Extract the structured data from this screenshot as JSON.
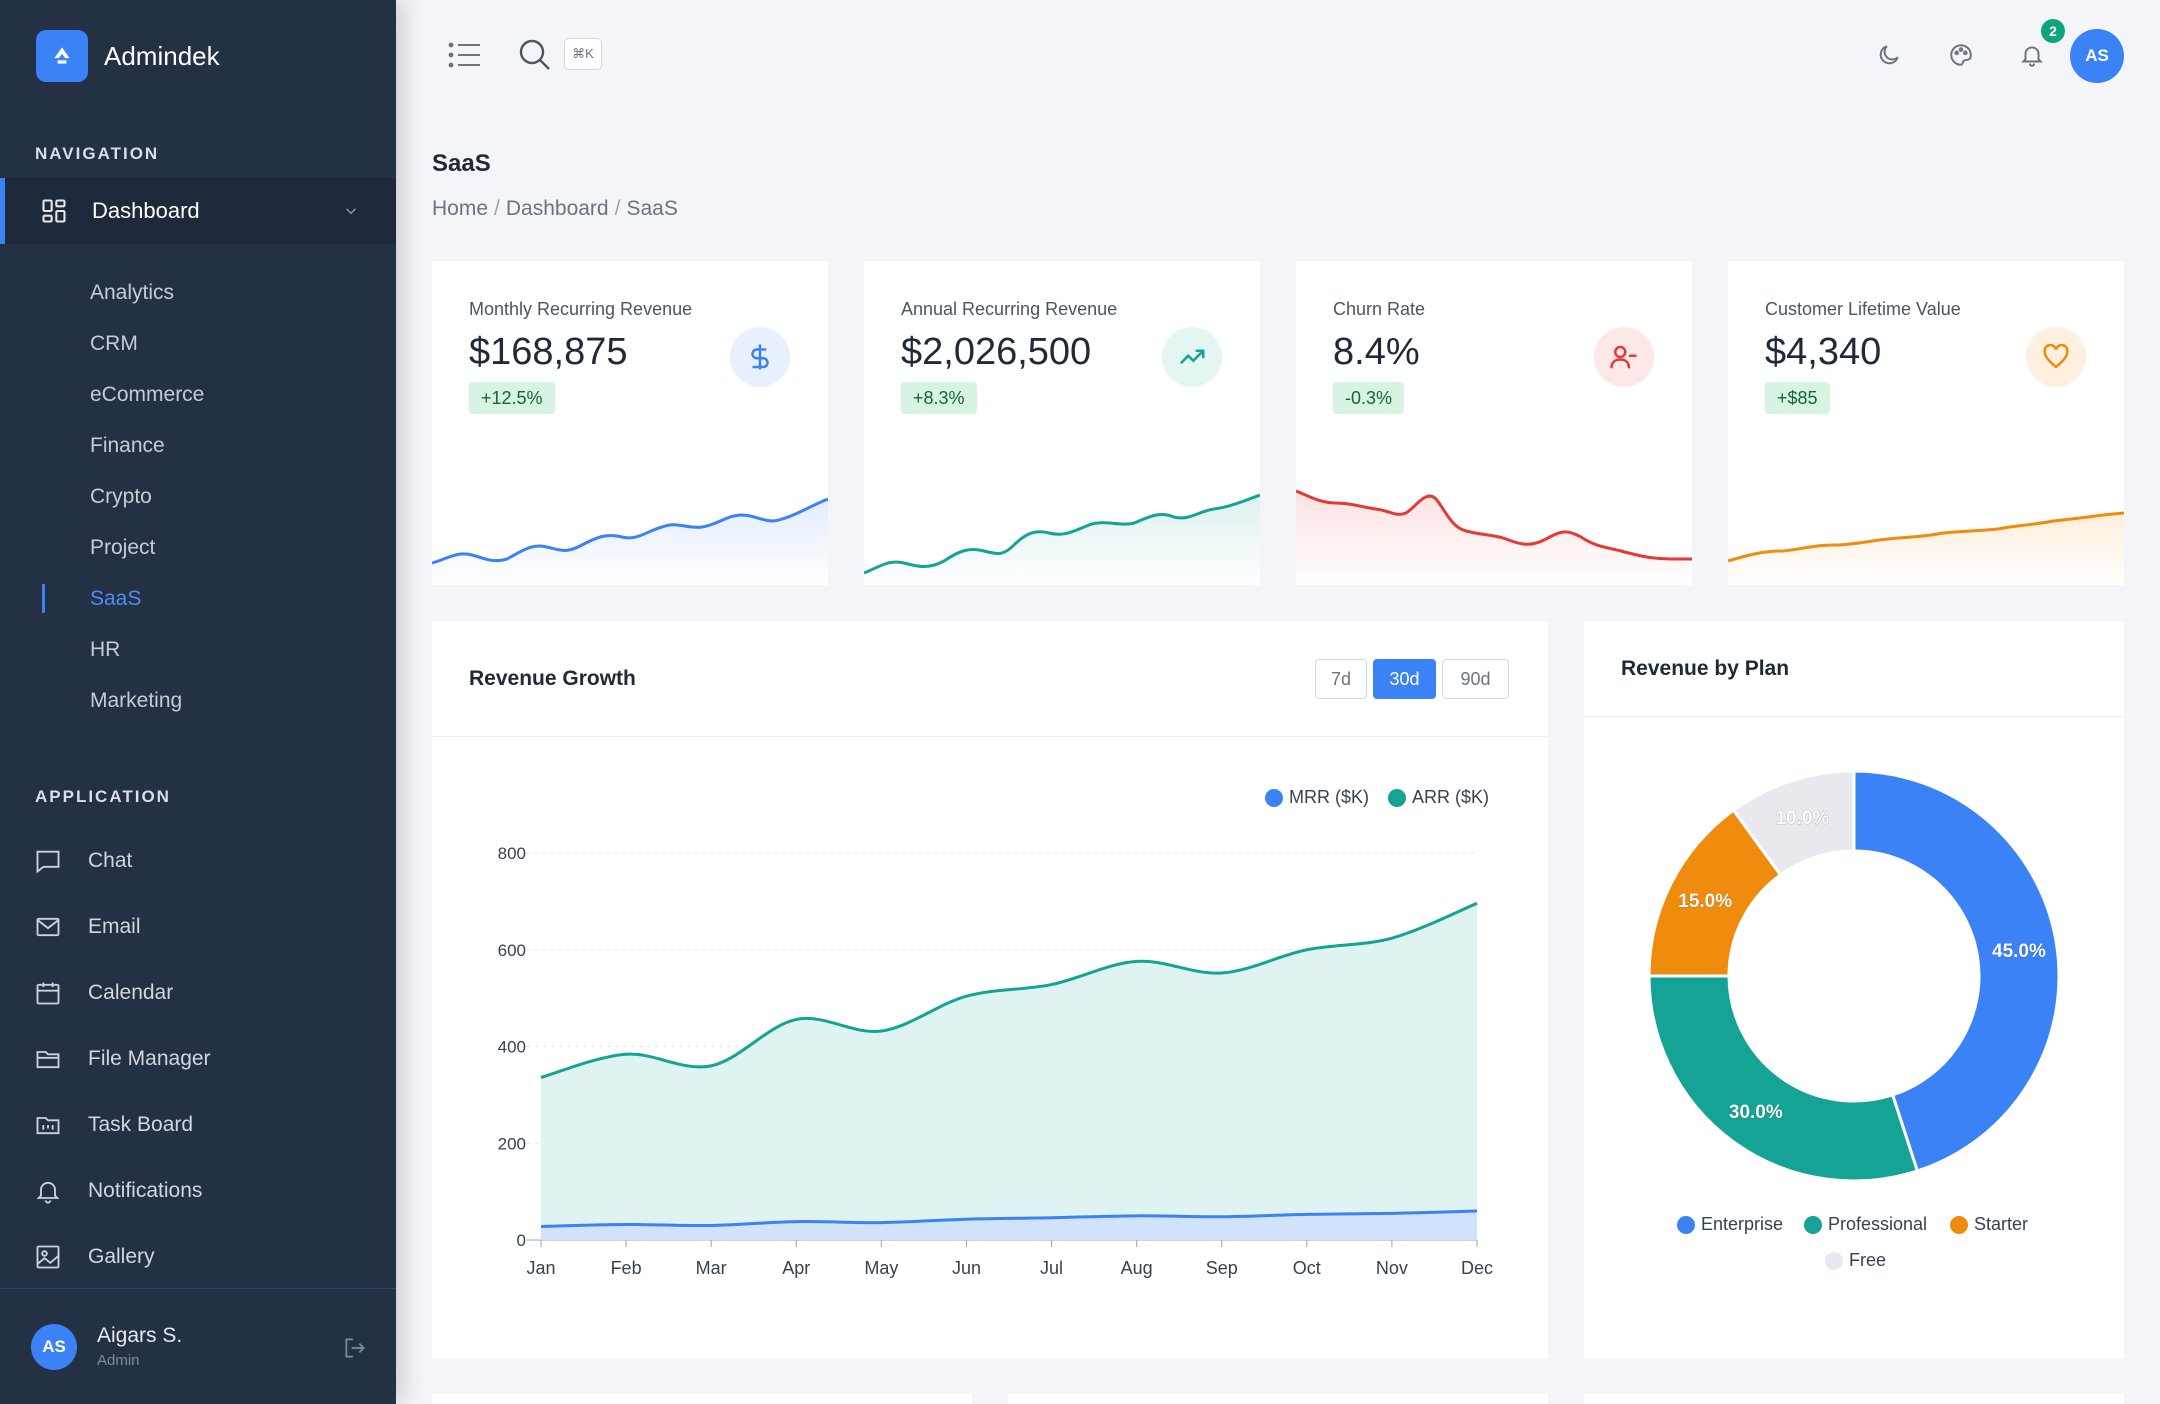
{
  "brand": {
    "name": "Admindek"
  },
  "sidebar": {
    "nav_label": "NAVIGATION",
    "dashboard_label": "Dashboard",
    "sub_items": [
      "Analytics",
      "CRM",
      "eCommerce",
      "Finance",
      "Crypto",
      "Project",
      "SaaS",
      "HR",
      "Marketing"
    ],
    "active_sub": "SaaS",
    "app_label": "APPLICATION",
    "app_items": [
      {
        "label": "Chat",
        "icon": "chat-icon"
      },
      {
        "label": "Email",
        "icon": "mail-icon"
      },
      {
        "label": "Calendar",
        "icon": "calendar-icon"
      },
      {
        "label": "File Manager",
        "icon": "folder-icon"
      },
      {
        "label": "Task Board",
        "icon": "task-board-icon"
      },
      {
        "label": "Notifications",
        "icon": "bell-icon"
      },
      {
        "label": "Gallery",
        "icon": "image-icon"
      }
    ],
    "user": {
      "initials": "AS",
      "name": "Aigars S.",
      "role": "Admin"
    }
  },
  "topbar": {
    "shortcut": "⌘K",
    "notification_count": "2",
    "avatar_initials": "AS"
  },
  "page": {
    "title": "SaaS",
    "breadcrumb": [
      "Home",
      "Dashboard",
      "SaaS"
    ]
  },
  "kpis": [
    {
      "label": "Monthly Recurring Revenue",
      "value": "$168,875",
      "delta": "+12.5%",
      "icon": "dollar-icon",
      "color": "#3b82f6"
    },
    {
      "label": "Annual Recurring Revenue",
      "value": "$2,026,500",
      "delta": "+8.3%",
      "icon": "trending-up-icon",
      "color": "#14a394"
    },
    {
      "label": "Churn Rate",
      "value": "8.4%",
      "delta": "-0.3%",
      "icon": "user-minus-icon",
      "color": "#e53935"
    },
    {
      "label": "Customer Lifetime Value",
      "value": "$4,340",
      "delta": "+$85",
      "icon": "heart-icon",
      "color": "#ef8c0e"
    }
  ],
  "revenue_growth": {
    "title": "Revenue Growth",
    "ranges": [
      "7d",
      "30d",
      "90d"
    ],
    "active_range": "30d"
  },
  "revenue_by_plan": {
    "title": "Revenue by Plan"
  },
  "chart_data": [
    {
      "type": "area",
      "title": "Revenue Growth",
      "categories": [
        "Jan",
        "Feb",
        "Mar",
        "Apr",
        "May",
        "Jun",
        "Jul",
        "Aug",
        "Sep",
        "Oct",
        "Nov",
        "Dec"
      ],
      "series": [
        {
          "name": "MRR ($K)",
          "color": "#3b82f6",
          "values": [
            28,
            32,
            30,
            38,
            36,
            43,
            46,
            50,
            48,
            53,
            55,
            60
          ]
        },
        {
          "name": "ARR ($K)",
          "color": "#14a394",
          "values": [
            336,
            384,
            360,
            456,
            432,
            504,
            528,
            576,
            552,
            600,
            624,
            696
          ]
        }
      ],
      "yticks": [
        0,
        200,
        400,
        600,
        800
      ],
      "ylim": [
        0,
        800
      ],
      "legend": "top-right",
      "grid": true
    },
    {
      "type": "pie",
      "title": "Revenue by Plan",
      "donut": true,
      "slices": [
        {
          "name": "Enterprise",
          "value": 45.0,
          "label": "45.0%",
          "color": "#3b82f6"
        },
        {
          "name": "Professional",
          "value": 30.0,
          "label": "30.0%",
          "color": "#14a394"
        },
        {
          "name": "Starter",
          "value": 15.0,
          "label": "15.0%",
          "color": "#ef8c0e"
        },
        {
          "name": "Free",
          "value": 10.0,
          "label": "10.0%",
          "color": "#e8e9ee"
        }
      ],
      "legend": "bottom"
    }
  ]
}
